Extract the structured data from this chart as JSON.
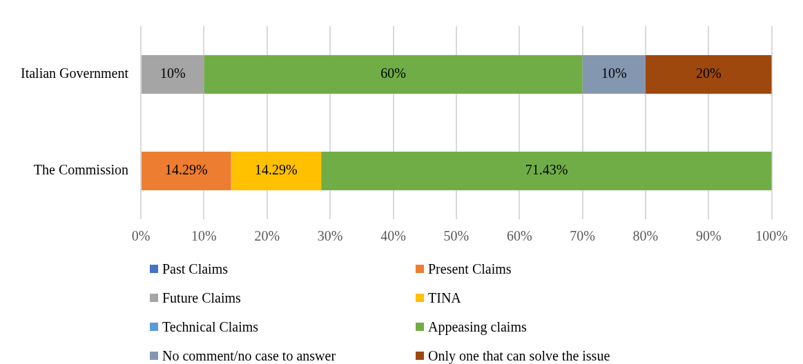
{
  "chart_data": {
    "type": "bar",
    "orientation": "horizontal",
    "stacked": true,
    "categories": [
      "Italian Government",
      "The Commission"
    ],
    "series": [
      {
        "name": "Past Claims",
        "color": "#4472c4",
        "values": [
          null,
          null
        ],
        "value_labels": [
          null,
          null
        ]
      },
      {
        "name": "Present Claims",
        "color": "#ed7d31",
        "values": [
          null,
          14.29
        ],
        "value_labels": [
          null,
          "14.29%"
        ]
      },
      {
        "name": "Future Claims",
        "color": "#a5a5a5",
        "values": [
          10,
          null
        ],
        "value_labels": [
          "10%",
          null
        ]
      },
      {
        "name": "TINA",
        "color": "#ffc000",
        "values": [
          null,
          14.29
        ],
        "value_labels": [
          null,
          "14.29%"
        ]
      },
      {
        "name": "Technical Claims",
        "color": "#5b9bd5",
        "values": [
          null,
          null
        ],
        "value_labels": [
          null,
          null
        ]
      },
      {
        "name": "Appeasing claims",
        "color": "#70ad47",
        "values": [
          60,
          71.43
        ],
        "value_labels": [
          "60%",
          "71.43%"
        ]
      },
      {
        "name": "No comment/no case to answer",
        "color": "#8497b0",
        "values": [
          10,
          null
        ],
        "value_labels": [
          "10%",
          null
        ]
      },
      {
        "name": "Only one that can solve the issue",
        "color": "#9e480e",
        "values": [
          20,
          null
        ],
        "value_labels": [
          "20%",
          null
        ]
      }
    ],
    "xlim": [
      0,
      100
    ],
    "xticks": [
      {
        "value": 0,
        "label": "0%"
      },
      {
        "value": 10,
        "label": "10%"
      },
      {
        "value": 20,
        "label": "20%"
      },
      {
        "value": 30,
        "label": "30%"
      },
      {
        "value": 40,
        "label": "40%"
      },
      {
        "value": 50,
        "label": "50%"
      },
      {
        "value": 60,
        "label": "60%"
      },
      {
        "value": 70,
        "label": "70%"
      },
      {
        "value": 80,
        "label": "80%"
      },
      {
        "value": 90,
        "label": "90%"
      },
      {
        "value": 100,
        "label": "100%"
      }
    ],
    "grid": "x",
    "legend": "bottom"
  }
}
